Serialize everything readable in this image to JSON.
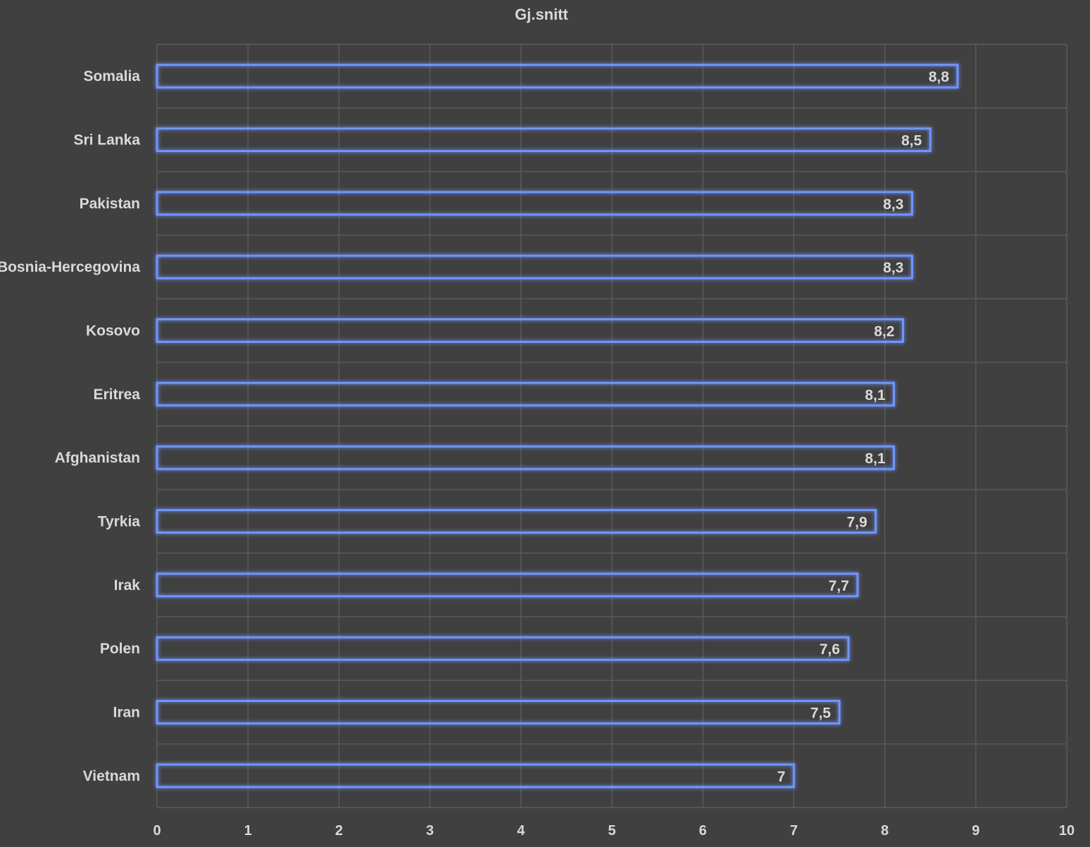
{
  "chart_data": {
    "type": "bar",
    "orientation": "horizontal",
    "title": "Gj.snitt",
    "xlabel": "",
    "ylabel": "",
    "categories": [
      "Somalia",
      "Sri Lanka",
      "Pakistan",
      "Bosnia-Hercegovina",
      "Kosovo",
      "Eritrea",
      "Afghanistan",
      "Tyrkia",
      "Irak",
      "Polen",
      "Iran",
      "Vietnam"
    ],
    "values": [
      8.8,
      8.5,
      8.3,
      8.3,
      8.2,
      8.1,
      8.1,
      7.9,
      7.7,
      7.6,
      7.5,
      7
    ],
    "data_labels": [
      "8,8",
      "8,5",
      "8,3",
      "8,3",
      "8,2",
      "8,1",
      "8,1",
      "7,9",
      "7,7",
      "7,6",
      "7,5",
      "7"
    ],
    "xlim": [
      0,
      10
    ],
    "x_ticks": [
      "0",
      "1",
      "2",
      "3",
      "4",
      "5",
      "6",
      "7",
      "8",
      "9",
      "10"
    ],
    "grid": true,
    "legend": "none",
    "colors": {
      "background": "#404040",
      "bar_outline": "#4a72d4",
      "bar_glow": "#6f95ff",
      "gridline": "#5a5a5a",
      "text": "#d9d9d9"
    }
  }
}
